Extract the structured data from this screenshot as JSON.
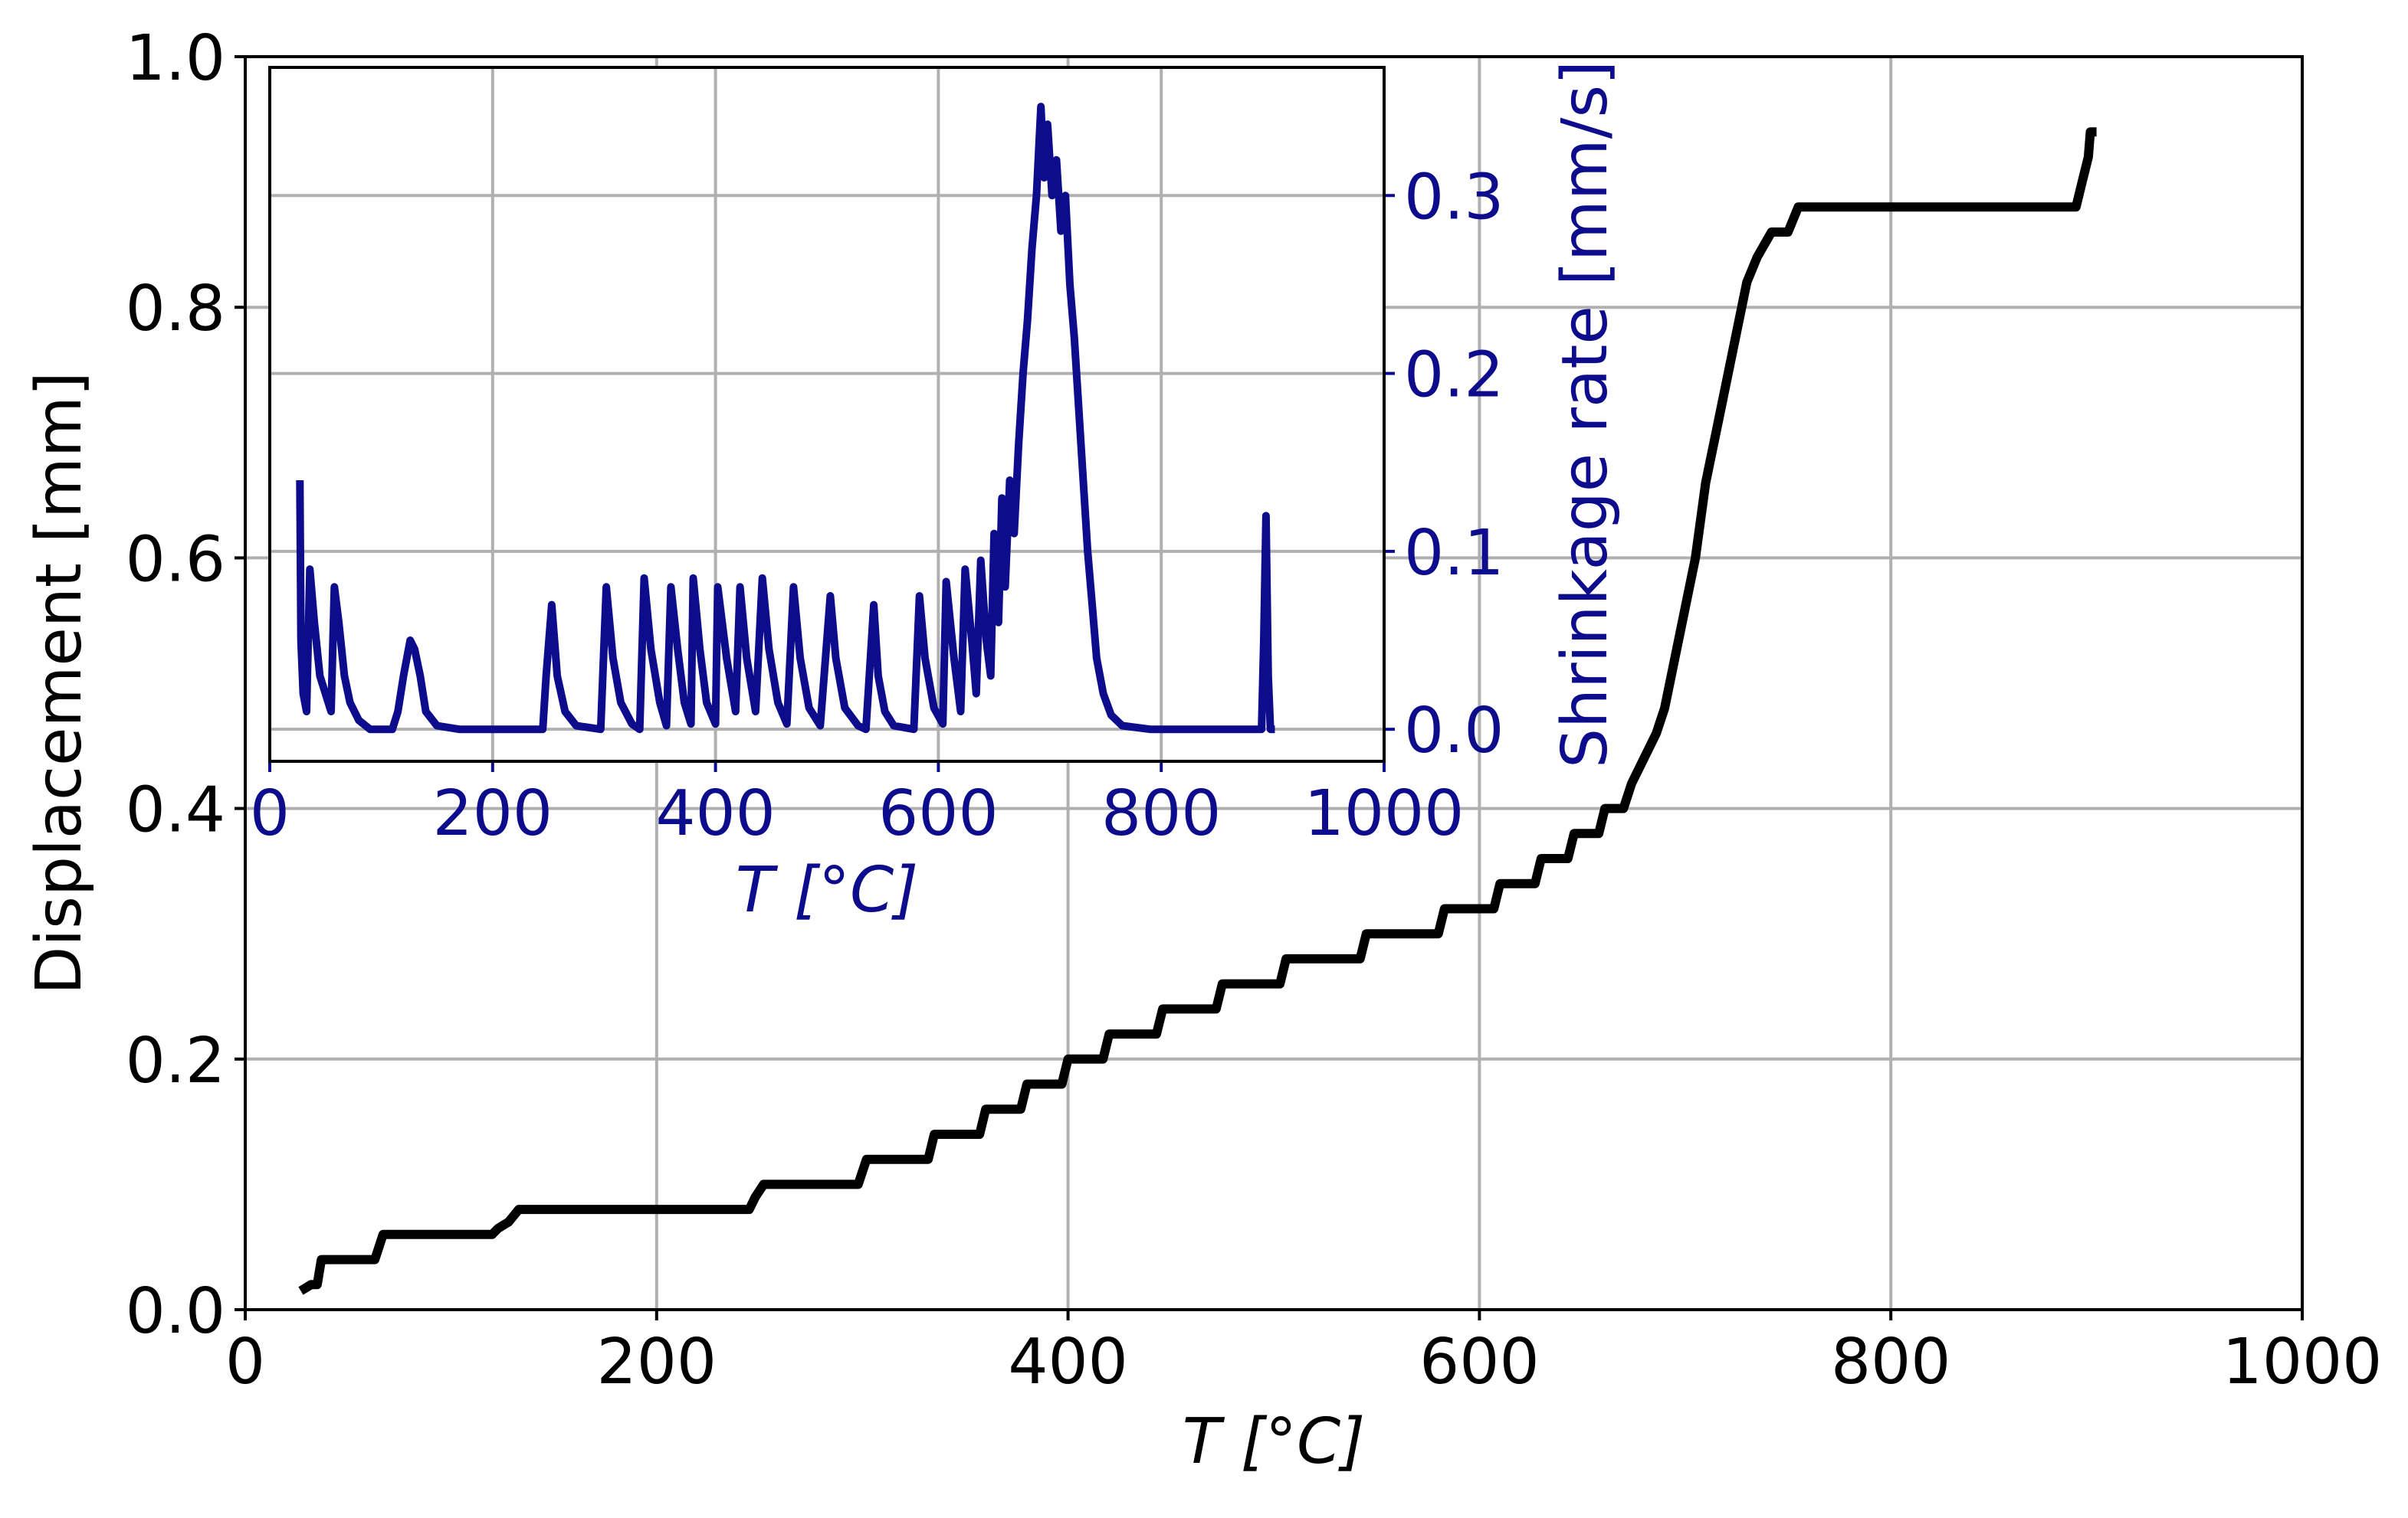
{
  "chart_data": [
    {
      "type": "line",
      "xlabel": "T [°C]",
      "ylabel": "Displacement [mm]",
      "xlim": [
        0,
        1000
      ],
      "ylim": [
        0,
        1.0
      ],
      "xticks": [
        0,
        200,
        400,
        600,
        800,
        1000
      ],
      "yticks": [
        {
          "value": 0,
          "label": "0.0"
        },
        0.2,
        0.4,
        0.6,
        0.8,
        {
          "value": 1.0,
          "label": "1.0"
        }
      ],
      "grid": true,
      "color": "#000000",
      "yaxis": "left",
      "x": [
        27,
        32,
        35,
        37,
        63,
        67,
        120,
        123,
        128,
        133,
        245,
        248,
        252,
        298,
        302,
        332,
        335,
        357,
        360,
        377,
        380,
        397,
        400,
        417,
        420,
        443,
        446,
        472,
        475,
        503,
        506,
        542,
        545,
        580,
        583,
        607,
        610,
        627,
        630,
        643,
        646,
        658,
        661,
        670,
        674,
        680,
        686,
        690,
        695,
        700,
        705,
        710,
        715,
        720,
        725,
        730,
        735,
        742,
        750,
        755,
        890,
        893,
        896,
        897,
        900
      ],
      "series": [
        {
          "name": "Displacement",
          "color": "#000000",
          "values": [
            0.015,
            0.02,
            0.02,
            0.04,
            0.04,
            0.06,
            0.06,
            0.065,
            0.07,
            0.08,
            0.08,
            0.09,
            0.1,
            0.1,
            0.12,
            0.12,
            0.14,
            0.14,
            0.16,
            0.16,
            0.18,
            0.18,
            0.2,
            0.2,
            0.22,
            0.22,
            0.24,
            0.24,
            0.26,
            0.26,
            0.28,
            0.28,
            0.3,
            0.3,
            0.32,
            0.32,
            0.34,
            0.34,
            0.36,
            0.36,
            0.38,
            0.38,
            0.4,
            0.4,
            0.42,
            0.44,
            0.46,
            0.48,
            0.52,
            0.56,
            0.6,
            0.66,
            0.7,
            0.74,
            0.78,
            0.82,
            0.84,
            0.86,
            0.86,
            0.88,
            0.88,
            0.9,
            0.92,
            0.94,
            0.94
          ]
        }
      ]
    },
    {
      "type": "line",
      "xlabel": "T [°C]",
      "ylabel": "Shrinkage rate [mm/s]",
      "xlim": [
        0,
        1000
      ],
      "ylim": [
        -0.018,
        0.372
      ],
      "xticks": [
        0,
        200,
        400,
        600,
        800,
        1000
      ],
      "yticks": [
        {
          "value": 0,
          "label": "0.0"
        },
        0.1,
        0.2,
        0.3
      ],
      "grid": true,
      "color": "#0c0c8c",
      "yaxis": "right",
      "x": [
        27,
        28,
        30,
        33,
        36,
        40,
        45,
        50,
        55,
        58,
        62,
        67,
        72,
        80,
        90,
        110,
        115,
        120,
        126,
        130,
        135,
        140,
        150,
        170,
        245,
        248,
        253,
        258,
        265,
        275,
        297,
        302,
        308,
        315,
        325,
        332,
        336,
        342,
        350,
        356,
        360,
        366,
        372,
        378,
        380,
        386,
        392,
        400,
        402,
        410,
        418,
        422,
        428,
        436,
        442,
        448,
        456,
        464,
        470,
        476,
        484,
        494,
        503,
        508,
        516,
        528,
        535,
        542,
        546,
        552,
        560,
        578,
        583,
        588,
        596,
        604,
        607,
        614,
        620,
        624,
        630,
        634,
        638,
        643,
        647,
        650,
        654,
        657,
        660,
        664,
        668,
        672,
        676,
        680,
        684,
        688,
        692,
        695,
        698,
        702,
        706,
        710,
        714,
        718,
        722,
        726,
        730,
        734,
        738,
        742,
        748,
        755,
        765,
        790,
        890,
        892,
        894,
        896,
        898,
        902
      ],
      "series": [
        {
          "name": "Shrinkage rate",
          "color": "#0c0c8c",
          "values": [
            0.14,
            0.05,
            0.02,
            0.01,
            0.09,
            0.06,
            0.03,
            0.02,
            0.01,
            0.08,
            0.06,
            0.03,
            0.015,
            0.005,
            0,
            0,
            0.01,
            0.03,
            0.05,
            0.045,
            0.03,
            0.01,
            0.002,
            0,
            0,
            0.03,
            0.07,
            0.03,
            0.01,
            0.002,
            0,
            0.08,
            0.04,
            0.015,
            0.003,
            0,
            0.085,
            0.045,
            0.015,
            0.002,
            0.08,
            0.045,
            0.015,
            0.003,
            0.085,
            0.045,
            0.015,
            0.003,
            0.08,
            0.04,
            0.01,
            0.08,
            0.04,
            0.01,
            0.085,
            0.045,
            0.015,
            0.003,
            0.08,
            0.04,
            0.012,
            0.002,
            0.075,
            0.04,
            0.012,
            0.002,
            0,
            0.07,
            0.03,
            0.01,
            0.002,
            0,
            0.075,
            0.04,
            0.012,
            0.003,
            0.083,
            0.04,
            0.01,
            0.09,
            0.05,
            0.02,
            0.095,
            0.05,
            0.03,
            0.11,
            0.06,
            0.13,
            0.08,
            0.14,
            0.11,
            0.16,
            0.2,
            0.23,
            0.27,
            0.3,
            0.35,
            0.31,
            0.34,
            0.3,
            0.32,
            0.28,
            0.3,
            0.25,
            0.22,
            0.18,
            0.14,
            0.1,
            0.07,
            0.04,
            0.02,
            0.008,
            0.002,
            0,
            0,
            0.05,
            0.12,
            0.03,
            0,
            0
          ]
        }
      ]
    }
  ]
}
